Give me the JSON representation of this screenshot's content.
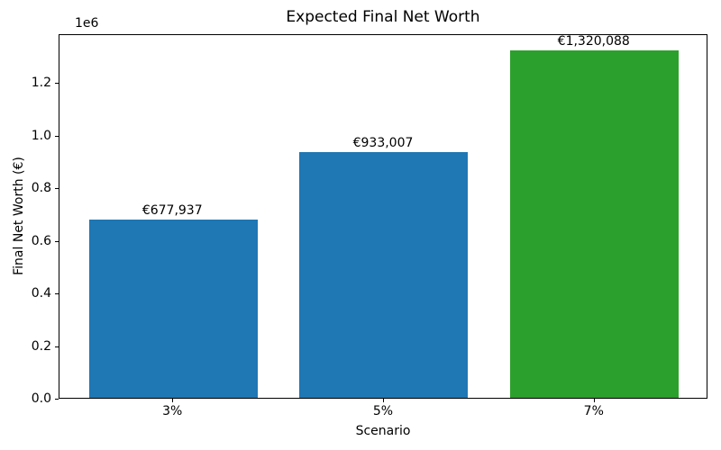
{
  "chart_data": {
    "type": "bar",
    "title": "Expected Final Net Worth",
    "xlabel": "Scenario",
    "ylabel": "Final Net Worth (€)",
    "y_offset_label": "1e6",
    "categories": [
      "3%",
      "5%",
      "7%"
    ],
    "values": [
      677937,
      933007,
      1320088
    ],
    "bar_value_labels": [
      "€677,937",
      "€933,007",
      "€1,320,088"
    ],
    "bar_colors": [
      "#1f77b4",
      "#1f77b4",
      "#2ca02c"
    ],
    "ylim": [
      0,
      1386092
    ],
    "yticks": [
      0,
      200000,
      400000,
      600000,
      800000,
      1000000,
      1200000
    ],
    "ytick_labels": [
      "0.0",
      "0.2",
      "0.4",
      "0.6",
      "0.8",
      "1.0",
      "1.2"
    ],
    "grid": false,
    "legend": null,
    "text_color": "#000000",
    "background_color": "#ffffff"
  }
}
